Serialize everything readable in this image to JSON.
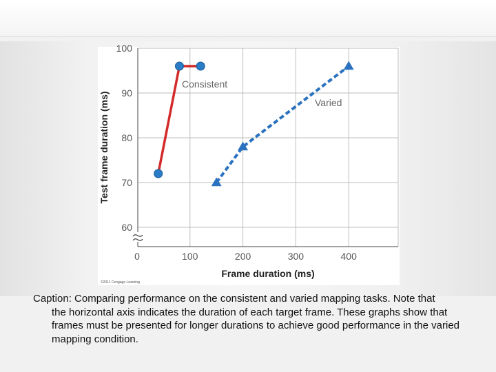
{
  "chart_data": {
    "type": "line",
    "xlabel": "Frame duration (ms)",
    "ylabel": "Test frame duration (ms)",
    "xlim": [
      0,
      500
    ],
    "ylim": [
      57,
      100
    ],
    "x_ticks": [
      "0",
      "100",
      "200",
      "300",
      "400"
    ],
    "y_ticks": [
      "60",
      "70",
      "80",
      "90",
      "100"
    ],
    "grid": true,
    "axis_break": "y",
    "series": [
      {
        "name": "Consistent",
        "color": "#d42a2a",
        "marker": "circle",
        "marker_color": "#2a7cc6",
        "line_style": "solid",
        "points": [
          [
            40,
            72
          ],
          [
            80,
            96
          ],
          [
            120,
            96
          ]
        ]
      },
      {
        "name": "Varied",
        "color": "#2a72bf",
        "marker": "triangle",
        "marker_color": "#2a72bf",
        "line_style": "dashed",
        "points": [
          [
            150,
            70
          ],
          [
            200,
            78
          ],
          [
            400,
            96
          ]
        ]
      }
    ],
    "credit": "©2011 Cengage Learning"
  },
  "caption": {
    "first": "Caption: Comparing performance on the consistent and varied mapping tasks. Note that",
    "rest": "the horizontal axis indicates the duration of each target frame. These graphs show that frames must be presented for longer durations to achieve good performance in the varied mapping condition."
  }
}
